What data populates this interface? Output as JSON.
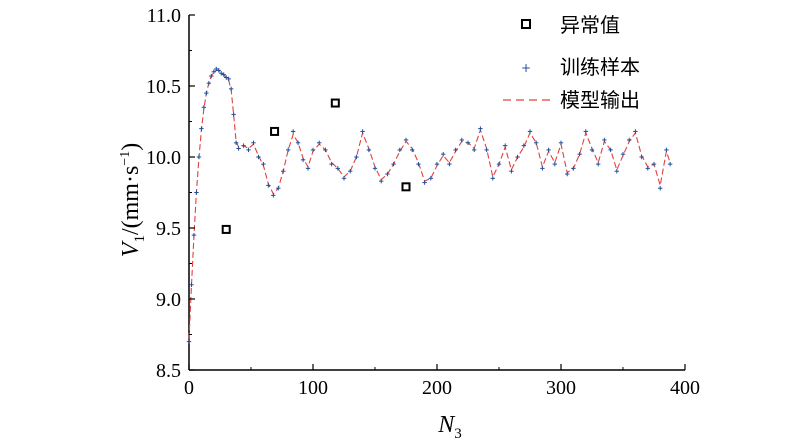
{
  "chart_data": {
    "type": "scatter",
    "title": "",
    "xlabel": "N3",
    "ylabel": "V1/(mm·s-1)",
    "x_label_parts": {
      "main": "N",
      "sub": "3"
    },
    "y_label_parts": {
      "main": "V",
      "sub": "1",
      "unit_open": "/(mm·s",
      "sup": "−1",
      "unit_close": ")"
    },
    "xlim": [
      0,
      400
    ],
    "ylim": [
      8.5,
      11.0
    ],
    "x_ticks": [
      "0",
      "100",
      "200",
      "300",
      "400"
    ],
    "x_tick_values": [
      0,
      100,
      200,
      300,
      400
    ],
    "y_ticks": [
      "8.5",
      "9.0",
      "9.5",
      "10.0",
      "10.5",
      "11.0"
    ],
    "y_tick_values": [
      8.5,
      9.0,
      9.5,
      10.0,
      10.5,
      11.0
    ],
    "grid": false,
    "legend_position": "top-right",
    "series": [
      {
        "name": "异常值",
        "marker": "square",
        "color": "#000000",
        "x": [
          30,
          69,
          118,
          175
        ],
        "y": [
          9.49,
          10.18,
          10.38,
          9.79
        ]
      },
      {
        "name": "训练样本",
        "marker": "plus",
        "color": "#1f4e9c",
        "x": [
          0,
          2,
          4,
          6,
          8,
          10,
          12,
          14,
          16,
          18,
          20,
          22,
          24,
          26,
          28,
          30,
          32,
          34,
          36,
          38,
          40,
          44,
          48,
          52,
          56,
          60,
          64,
          68,
          72,
          76,
          80,
          84,
          88,
          92,
          96,
          100,
          105,
          110,
          115,
          120,
          125,
          130,
          135,
          140,
          145,
          150,
          155,
          160,
          165,
          170,
          175,
          180,
          185,
          190,
          195,
          200,
          205,
          210,
          215,
          220,
          225,
          230,
          235,
          240,
          245,
          250,
          255,
          260,
          265,
          270,
          275,
          280,
          285,
          290,
          295,
          300,
          305,
          310,
          315,
          320,
          325,
          330,
          335,
          340,
          345,
          350,
          355,
          360,
          365,
          370,
          375,
          380,
          385,
          388
        ],
        "y": [
          8.7,
          9.1,
          9.45,
          9.75,
          10.0,
          10.2,
          10.35,
          10.45,
          10.52,
          10.57,
          10.6,
          10.62,
          10.61,
          10.59,
          10.58,
          10.56,
          10.55,
          10.48,
          10.3,
          10.1,
          10.06,
          10.08,
          10.05,
          10.1,
          10.0,
          9.95,
          9.8,
          9.73,
          9.78,
          9.9,
          10.05,
          10.18,
          10.1,
          9.98,
          9.92,
          10.05,
          10.1,
          10.05,
          9.95,
          9.92,
          9.85,
          9.9,
          10.0,
          10.18,
          10.05,
          9.92,
          9.83,
          9.88,
          9.95,
          10.05,
          10.12,
          10.05,
          9.95,
          9.82,
          9.85,
          9.95,
          10.02,
          9.95,
          10.05,
          10.12,
          10.1,
          10.05,
          10.2,
          10.05,
          9.85,
          9.95,
          10.08,
          9.9,
          10.0,
          10.08,
          10.18,
          10.1,
          9.92,
          10.05,
          9.95,
          10.1,
          9.88,
          9.92,
          10.02,
          10.18,
          10.05,
          9.95,
          10.12,
          10.05,
          9.9,
          10.02,
          10.12,
          10.18,
          10.0,
          9.92,
          9.95,
          9.78,
          10.05,
          9.95
        ]
      },
      {
        "name": "模型输出",
        "marker": "dashed-line",
        "color": "#e0413f",
        "x": [
          0,
          2,
          4,
          6,
          8,
          10,
          12,
          14,
          16,
          18,
          20,
          22,
          24,
          26,
          28,
          30,
          32,
          34,
          36,
          38,
          40,
          44,
          48,
          52,
          56,
          60,
          64,
          68,
          72,
          76,
          80,
          84,
          88,
          92,
          96,
          100,
          105,
          110,
          115,
          120,
          125,
          130,
          135,
          140,
          145,
          150,
          155,
          160,
          165,
          170,
          175,
          180,
          185,
          190,
          195,
          200,
          205,
          210,
          215,
          220,
          225,
          230,
          235,
          240,
          245,
          250,
          255,
          260,
          265,
          270,
          275,
          280,
          285,
          290,
          295,
          300,
          305,
          310,
          315,
          320,
          325,
          330,
          335,
          340,
          345,
          350,
          355,
          360,
          365,
          370,
          375,
          380,
          385,
          388
        ],
        "y": [
          8.72,
          9.1,
          9.45,
          9.75,
          9.99,
          10.19,
          10.34,
          10.45,
          10.52,
          10.57,
          10.6,
          10.61,
          10.61,
          10.59,
          10.58,
          10.56,
          10.54,
          10.47,
          10.3,
          10.11,
          10.07,
          10.08,
          10.06,
          10.09,
          10.01,
          9.94,
          9.81,
          9.74,
          9.78,
          9.9,
          10.05,
          10.16,
          10.1,
          9.99,
          9.93,
          10.04,
          10.09,
          10.05,
          9.96,
          9.92,
          9.86,
          9.9,
          10.0,
          10.17,
          10.06,
          9.93,
          9.84,
          9.88,
          9.95,
          10.04,
          10.11,
          10.06,
          9.96,
          9.83,
          9.85,
          9.94,
          10.01,
          9.96,
          10.04,
          10.11,
          10.1,
          10.06,
          10.19,
          10.06,
          9.86,
          9.95,
          10.07,
          9.91,
          10.0,
          10.07,
          10.17,
          10.1,
          9.93,
          10.04,
          9.96,
          10.09,
          9.89,
          9.92,
          10.02,
          10.17,
          10.06,
          9.96,
          10.11,
          10.05,
          9.91,
          10.01,
          10.11,
          10.17,
          10.01,
          9.93,
          9.95,
          9.8,
          10.04,
          9.96
        ]
      }
    ]
  }
}
